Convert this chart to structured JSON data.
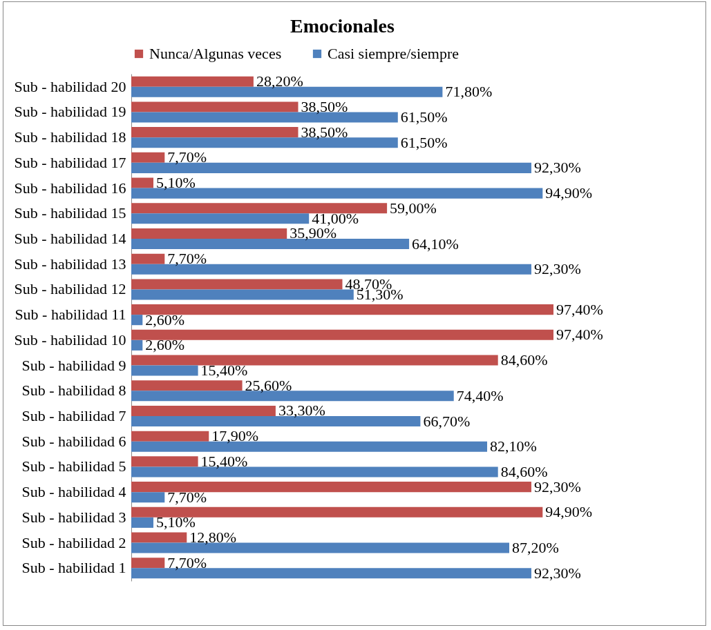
{
  "chart_data": {
    "type": "bar",
    "orientation": "horizontal",
    "title": "Emocionales",
    "legend": "top",
    "grid": false,
    "categories": [
      "Sub - habilidad 20",
      "Sub - habilidad 19",
      "Sub - habilidad 18",
      "Sub - habilidad 17",
      "Sub - habilidad 16",
      "Sub - habilidad 15",
      "Sub - habilidad 14",
      "Sub - habilidad 13",
      "Sub - habilidad 12",
      "Sub - habilidad 11",
      "Sub - habilidad 10",
      "Sub - habilidad 9",
      "Sub - habilidad 8",
      "Sub - habilidad 7",
      "Sub - habilidad 6",
      "Sub - habilidad 5",
      "Sub - habilidad 4",
      "Sub - habilidad 3",
      "Sub - habilidad 2",
      "Sub - habilidad 1"
    ],
    "series": [
      {
        "name": "Nunca/Algunas veces",
        "color": "#c0504d",
        "values": [
          28.2,
          38.5,
          38.5,
          7.7,
          5.1,
          59.0,
          35.9,
          7.7,
          48.7,
          97.4,
          97.4,
          84.6,
          25.6,
          33.3,
          17.9,
          15.4,
          92.3,
          94.9,
          12.8,
          7.7
        ],
        "value_labels": [
          "28,20%",
          "38,50%",
          "38,50%",
          "7,70%",
          "5,10%",
          "59,00%",
          "35,90%",
          "7,70%",
          "48,70%",
          "97,40%",
          "97,40%",
          "84,60%",
          "25,60%",
          "33,30%",
          "17,90%",
          "15,40%",
          "92,30%",
          "94,90%",
          "12,80%",
          "7,70%"
        ]
      },
      {
        "name": "Casi siempre/siempre",
        "color": "#4f81bd",
        "values": [
          71.8,
          61.5,
          61.5,
          92.3,
          94.9,
          41.0,
          64.1,
          92.3,
          51.3,
          2.6,
          2.6,
          15.4,
          74.4,
          66.7,
          82.1,
          84.6,
          7.7,
          5.1,
          87.2,
          92.3
        ],
        "value_labels": [
          "71,80%",
          "61,50%",
          "61,50%",
          "92,30%",
          "94,90%",
          "41,00%",
          "64,10%",
          "92,30%",
          "51,30%",
          "2,60%",
          "2,60%",
          "15,40%",
          "74,40%",
          "66,70%",
          "82,10%",
          "84,60%",
          "7,70%",
          "5,10%",
          "87,20%",
          "92,30%"
        ]
      }
    ]
  }
}
